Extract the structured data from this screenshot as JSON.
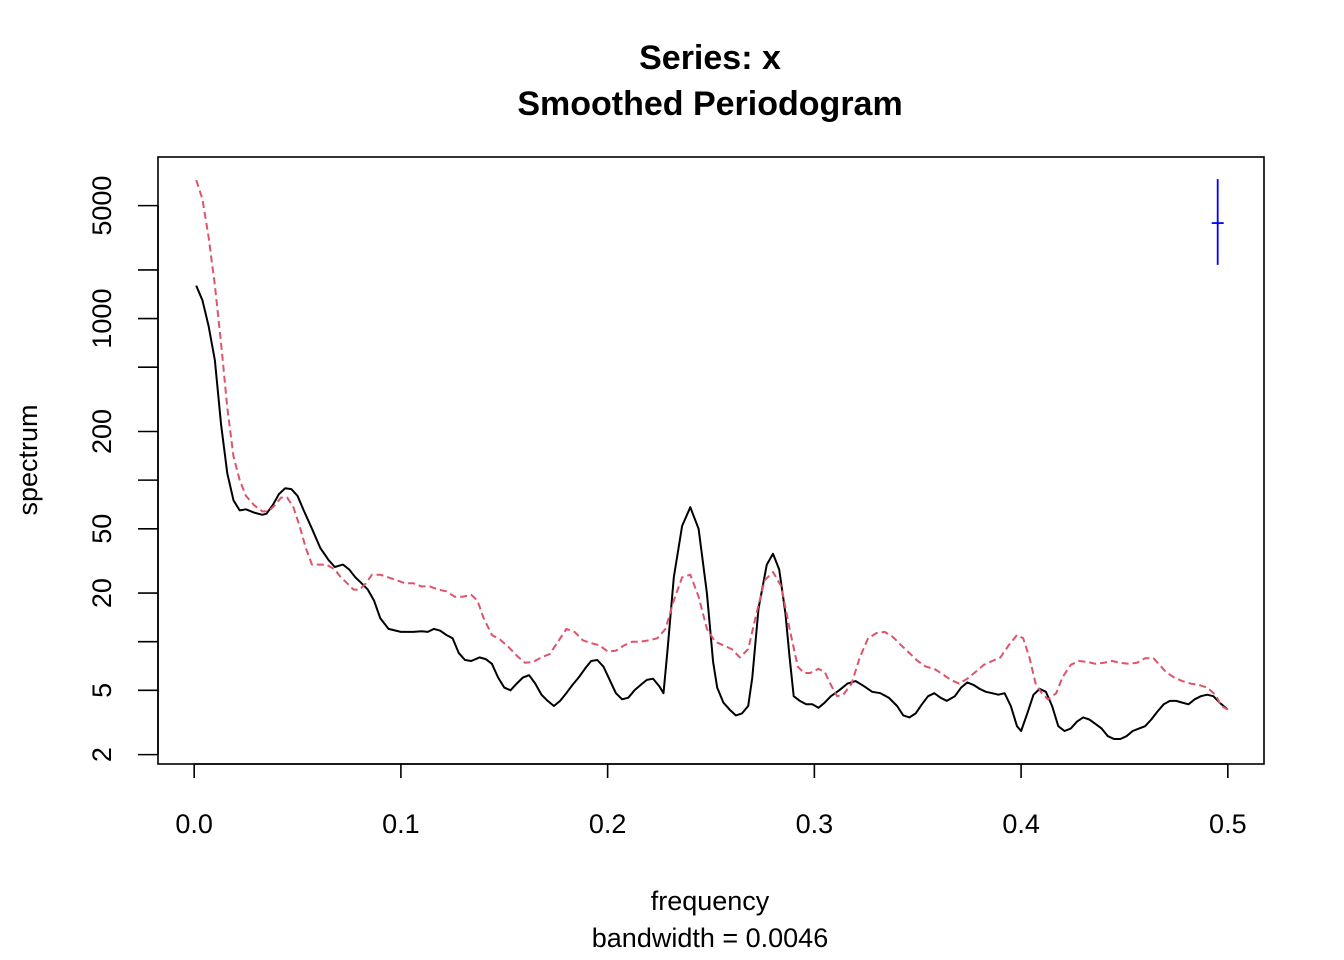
{
  "chart_data": {
    "type": "line",
    "title": "Series: x",
    "subtitle": "Smoothed Periodogram",
    "xlabel": "frequency",
    "xsub": "bandwidth = 0.0046",
    "ylabel": "spectrum",
    "yscale": "log",
    "xlim": [
      -0.0175,
      0.5175
    ],
    "ylim": [
      1.75,
      10000
    ],
    "x_ticks": [
      0.0,
      0.1,
      0.2,
      0.3,
      0.4,
      0.5
    ],
    "x_tick_labels": [
      "0.0",
      "0.1",
      "0.2",
      "0.3",
      "0.4",
      "0.5"
    ],
    "y_ticks": [
      2,
      5,
      10,
      20,
      50,
      100,
      200,
      500,
      1000,
      2000,
      5000
    ],
    "y_tick_labels": [
      "2",
      "5",
      "",
      "20",
      "50",
      "",
      "200",
      "",
      "1000",
      "",
      "5000"
    ],
    "grid": false,
    "series": [
      {
        "color": "#000000",
        "dash": "solid",
        "points": [
          [
            0.001,
            1600
          ],
          [
            0.004,
            1300
          ],
          [
            0.007,
            900
          ],
          [
            0.01,
            550
          ],
          [
            0.013,
            220
          ],
          [
            0.016,
            110
          ],
          [
            0.019,
            75
          ],
          [
            0.022,
            65
          ],
          [
            0.025,
            66
          ],
          [
            0.029,
            63
          ],
          [
            0.033,
            61
          ],
          [
            0.035,
            62
          ],
          [
            0.038,
            70
          ],
          [
            0.041,
            82
          ],
          [
            0.044,
            89
          ],
          [
            0.047,
            88
          ],
          [
            0.05,
            80
          ],
          [
            0.053,
            65
          ],
          [
            0.057,
            50
          ],
          [
            0.061,
            38
          ],
          [
            0.065,
            32
          ],
          [
            0.068,
            29
          ],
          [
            0.072,
            30
          ],
          [
            0.075,
            28
          ],
          [
            0.078,
            25
          ],
          [
            0.081,
            23
          ],
          [
            0.084,
            21
          ],
          [
            0.087,
            18
          ],
          [
            0.09,
            14
          ],
          [
            0.094,
            12
          ],
          [
            0.1,
            11.5
          ],
          [
            0.103,
            11.5
          ],
          [
            0.106,
            11.5
          ],
          [
            0.11,
            11.6
          ],
          [
            0.113,
            11.5
          ],
          [
            0.116,
            12
          ],
          [
            0.119,
            11.7
          ],
          [
            0.122,
            11
          ],
          [
            0.125,
            10.5
          ],
          [
            0.128,
            8.5
          ],
          [
            0.131,
            7.7
          ],
          [
            0.134,
            7.6
          ],
          [
            0.138,
            8
          ],
          [
            0.141,
            7.8
          ],
          [
            0.144,
            7.3
          ],
          [
            0.147,
            6
          ],
          [
            0.15,
            5.2
          ],
          [
            0.153,
            5
          ],
          [
            0.156,
            5.5
          ],
          [
            0.159,
            6
          ],
          [
            0.162,
            6.2
          ],
          [
            0.165,
            5.5
          ],
          [
            0.168,
            4.7
          ],
          [
            0.171,
            4.3
          ],
          [
            0.174,
            4
          ],
          [
            0.177,
            4.3
          ],
          [
            0.18,
            4.8
          ],
          [
            0.183,
            5.4
          ],
          [
            0.186,
            6
          ],
          [
            0.189,
            6.8
          ],
          [
            0.192,
            7.6
          ],
          [
            0.195,
            7.7
          ],
          [
            0.198,
            7
          ],
          [
            0.201,
            5.8
          ],
          [
            0.204,
            4.8
          ],
          [
            0.207,
            4.4
          ],
          [
            0.21,
            4.5
          ],
          [
            0.213,
            5
          ],
          [
            0.216,
            5.4
          ],
          [
            0.219,
            5.8
          ],
          [
            0.222,
            5.9
          ],
          [
            0.225,
            5.3
          ],
          [
            0.227,
            4.8
          ],
          [
            0.229,
            9
          ],
          [
            0.232,
            25
          ],
          [
            0.236,
            52
          ],
          [
            0.24,
            68
          ],
          [
            0.244,
            50
          ],
          [
            0.248,
            20
          ],
          [
            0.251,
            7.5
          ],
          [
            0.253,
            5.2
          ],
          [
            0.256,
            4.2
          ],
          [
            0.259,
            3.8
          ],
          [
            0.262,
            3.5
          ],
          [
            0.265,
            3.6
          ],
          [
            0.268,
            4
          ],
          [
            0.27,
            6
          ],
          [
            0.273,
            16
          ],
          [
            0.277,
            30
          ],
          [
            0.28,
            35
          ],
          [
            0.283,
            28
          ],
          [
            0.286,
            15
          ],
          [
            0.288,
            8
          ],
          [
            0.29,
            4.6
          ],
          [
            0.293,
            4.3
          ],
          [
            0.296,
            4.1
          ],
          [
            0.299,
            4.1
          ],
          [
            0.302,
            3.9
          ],
          [
            0.305,
            4.2
          ],
          [
            0.308,
            4.6
          ],
          [
            0.312,
            5
          ],
          [
            0.316,
            5.5
          ],
          [
            0.32,
            5.7
          ],
          [
            0.324,
            5.3
          ],
          [
            0.328,
            4.9
          ],
          [
            0.332,
            4.8
          ],
          [
            0.336,
            4.5
          ],
          [
            0.34,
            4
          ],
          [
            0.343,
            3.5
          ],
          [
            0.346,
            3.4
          ],
          [
            0.349,
            3.6
          ],
          [
            0.352,
            4.1
          ],
          [
            0.355,
            4.6
          ],
          [
            0.358,
            4.8
          ],
          [
            0.361,
            4.5
          ],
          [
            0.364,
            4.3
          ],
          [
            0.368,
            4.6
          ],
          [
            0.371,
            5.2
          ],
          [
            0.374,
            5.6
          ],
          [
            0.377,
            5.4
          ],
          [
            0.38,
            5.1
          ],
          [
            0.383,
            4.9
          ],
          [
            0.386,
            4.8
          ],
          [
            0.389,
            4.7
          ],
          [
            0.392,
            4.8
          ],
          [
            0.395,
            4
          ],
          [
            0.398,
            3
          ],
          [
            0.4,
            2.8
          ],
          [
            0.403,
            3.6
          ],
          [
            0.406,
            4.7
          ],
          [
            0.409,
            5.1
          ],
          [
            0.412,
            4.9
          ],
          [
            0.415,
            4
          ],
          [
            0.418,
            3
          ],
          [
            0.421,
            2.8
          ],
          [
            0.424,
            2.9
          ],
          [
            0.427,
            3.2
          ],
          [
            0.43,
            3.4
          ],
          [
            0.433,
            3.3
          ],
          [
            0.436,
            3.1
          ],
          [
            0.439,
            2.9
          ],
          [
            0.442,
            2.6
          ],
          [
            0.445,
            2.5
          ],
          [
            0.448,
            2.5
          ],
          [
            0.451,
            2.6
          ],
          [
            0.454,
            2.8
          ],
          [
            0.457,
            2.9
          ],
          [
            0.46,
            3
          ],
          [
            0.463,
            3.3
          ],
          [
            0.466,
            3.7
          ],
          [
            0.469,
            4.1
          ],
          [
            0.472,
            4.3
          ],
          [
            0.475,
            4.3
          ],
          [
            0.478,
            4.2
          ],
          [
            0.481,
            4.1
          ],
          [
            0.484,
            4.4
          ],
          [
            0.487,
            4.6
          ],
          [
            0.49,
            4.7
          ],
          [
            0.493,
            4.6
          ],
          [
            0.496,
            4.2
          ],
          [
            0.5,
            3.8
          ]
        ]
      },
      {
        "color": "#df536b",
        "dash": "dashed",
        "points": [
          [
            0.001,
            7200
          ],
          [
            0.004,
            5500
          ],
          [
            0.007,
            3200
          ],
          [
            0.01,
            1600
          ],
          [
            0.013,
            700
          ],
          [
            0.016,
            280
          ],
          [
            0.019,
            140
          ],
          [
            0.022,
            100
          ],
          [
            0.025,
            80
          ],
          [
            0.029,
            70
          ],
          [
            0.033,
            64
          ],
          [
            0.036,
            64
          ],
          [
            0.039,
            70
          ],
          [
            0.042,
            78
          ],
          [
            0.045,
            78
          ],
          [
            0.048,
            68
          ],
          [
            0.051,
            52
          ],
          [
            0.054,
            38
          ],
          [
            0.057,
            30
          ],
          [
            0.06,
            30
          ],
          [
            0.064,
            30
          ],
          [
            0.068,
            28
          ],
          [
            0.071,
            25
          ],
          [
            0.074,
            23
          ],
          [
            0.077,
            21
          ],
          [
            0.08,
            21
          ],
          [
            0.083,
            23
          ],
          [
            0.086,
            26
          ],
          [
            0.09,
            26
          ],
          [
            0.094,
            25
          ],
          [
            0.098,
            24
          ],
          [
            0.102,
            23
          ],
          [
            0.106,
            23
          ],
          [
            0.11,
            22
          ],
          [
            0.114,
            22
          ],
          [
            0.118,
            21
          ],
          [
            0.122,
            20.5
          ],
          [
            0.126,
            19
          ],
          [
            0.13,
            19
          ],
          [
            0.134,
            19.5
          ],
          [
            0.137,
            18
          ],
          [
            0.14,
            14
          ],
          [
            0.144,
            11
          ],
          [
            0.148,
            10.3
          ],
          [
            0.152,
            9.3
          ],
          [
            0.156,
            8.2
          ],
          [
            0.16,
            7.4
          ],
          [
            0.164,
            7.5
          ],
          [
            0.168,
            8
          ],
          [
            0.172,
            8.4
          ],
          [
            0.176,
            10
          ],
          [
            0.18,
            12
          ],
          [
            0.184,
            11.5
          ],
          [
            0.188,
            10.2
          ],
          [
            0.192,
            9.8
          ],
          [
            0.196,
            9.5
          ],
          [
            0.2,
            8.7
          ],
          [
            0.204,
            8.8
          ],
          [
            0.208,
            9.5
          ],
          [
            0.212,
            10
          ],
          [
            0.216,
            10
          ],
          [
            0.22,
            10.2
          ],
          [
            0.224,
            10.5
          ],
          [
            0.228,
            12
          ],
          [
            0.232,
            18
          ],
          [
            0.236,
            25
          ],
          [
            0.24,
            26
          ],
          [
            0.244,
            19
          ],
          [
            0.248,
            12
          ],
          [
            0.252,
            10
          ],
          [
            0.256,
            9.5
          ],
          [
            0.26,
            9
          ],
          [
            0.264,
            8
          ],
          [
            0.268,
            9
          ],
          [
            0.272,
            15
          ],
          [
            0.276,
            24
          ],
          [
            0.28,
            27
          ],
          [
            0.284,
            22
          ],
          [
            0.288,
            12
          ],
          [
            0.292,
            7
          ],
          [
            0.295,
            6.4
          ],
          [
            0.298,
            6.4
          ],
          [
            0.302,
            6.8
          ],
          [
            0.305,
            6.5
          ],
          [
            0.308,
            5.4
          ],
          [
            0.311,
            4.6
          ],
          [
            0.314,
            4.7
          ],
          [
            0.318,
            5.5
          ],
          [
            0.322,
            8
          ],
          [
            0.326,
            10.5
          ],
          [
            0.33,
            11.3
          ],
          [
            0.334,
            11.5
          ],
          [
            0.338,
            10.7
          ],
          [
            0.342,
            9.5
          ],
          [
            0.346,
            8.5
          ],
          [
            0.35,
            7.6
          ],
          [
            0.354,
            7
          ],
          [
            0.358,
            6.8
          ],
          [
            0.362,
            6.3
          ],
          [
            0.366,
            5.8
          ],
          [
            0.37,
            5.5
          ],
          [
            0.374,
            5.9
          ],
          [
            0.378,
            6.5
          ],
          [
            0.382,
            7.2
          ],
          [
            0.386,
            7.6
          ],
          [
            0.39,
            8
          ],
          [
            0.394,
            9.5
          ],
          [
            0.398,
            11
          ],
          [
            0.401,
            10.5
          ],
          [
            0.404,
            8
          ],
          [
            0.407,
            5.5
          ],
          [
            0.41,
            4.8
          ],
          [
            0.413,
            4.4
          ],
          [
            0.417,
            4.8
          ],
          [
            0.42,
            6
          ],
          [
            0.424,
            7.2
          ],
          [
            0.428,
            7.6
          ],
          [
            0.432,
            7.5
          ],
          [
            0.436,
            7.3
          ],
          [
            0.44,
            7.4
          ],
          [
            0.444,
            7.6
          ],
          [
            0.448,
            7.4
          ],
          [
            0.452,
            7.3
          ],
          [
            0.456,
            7.4
          ],
          [
            0.46,
            7.9
          ],
          [
            0.464,
            7.9
          ],
          [
            0.467,
            7.2
          ],
          [
            0.47,
            6.5
          ],
          [
            0.474,
            6
          ],
          [
            0.478,
            5.7
          ],
          [
            0.482,
            5.5
          ],
          [
            0.486,
            5.4
          ],
          [
            0.49,
            5.2
          ],
          [
            0.494,
            4.7
          ],
          [
            0.497,
            4
          ],
          [
            0.5,
            3.8
          ]
        ]
      }
    ],
    "ci_bar": {
      "x": 0.4951,
      "center": 3900,
      "low": 2150,
      "high": 7300,
      "color": "#0000ff"
    }
  }
}
